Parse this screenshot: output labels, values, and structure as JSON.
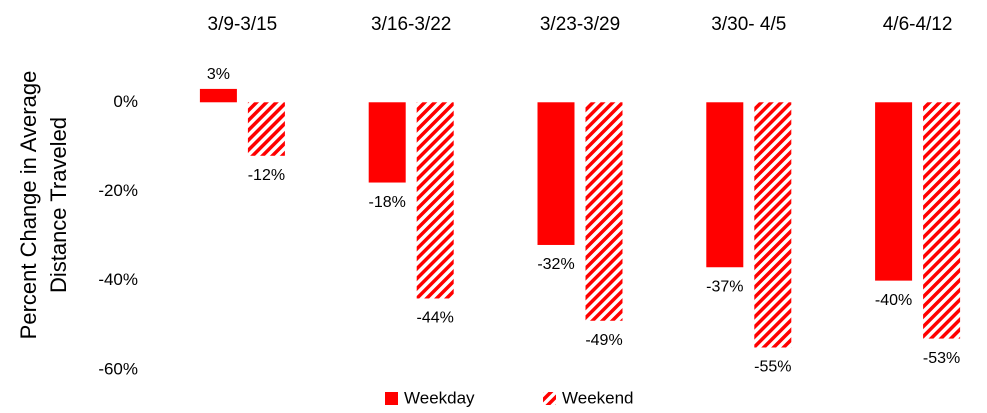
{
  "chart_data": {
    "type": "bar",
    "ylabel": [
      "Percent Change in Average",
      "Distance Traveled"
    ],
    "categories": [
      "3/9-3/15",
      "3/16-3/22",
      "3/23-3/29",
      "3/30- 4/5",
      "4/6-4/12"
    ],
    "series": [
      {
        "name": "Weekday",
        "color": "#ff0000",
        "pattern": "solid",
        "values": [
          3,
          -18,
          -32,
          -37,
          -40
        ],
        "value_labels": [
          "3%",
          "-18%",
          "-32%",
          "-37%",
          "-40%"
        ]
      },
      {
        "name": "Weekend",
        "color": "#ff0000",
        "pattern": "hatch",
        "values": [
          -12,
          -44,
          -49,
          -55,
          -53
        ],
        "value_labels": [
          "-12%",
          "-44%",
          "-49%",
          "-55%",
          "-53%"
        ]
      }
    ],
    "ylim": [
      -60,
      10
    ],
    "yticks": [
      {
        "value": 0,
        "label": "0%"
      },
      {
        "value": -20,
        "label": "-20%"
      },
      {
        "value": -40,
        "label": "-40%"
      },
      {
        "value": -60,
        "label": "-60%"
      }
    ],
    "grid": false,
    "legend": "bottom"
  }
}
